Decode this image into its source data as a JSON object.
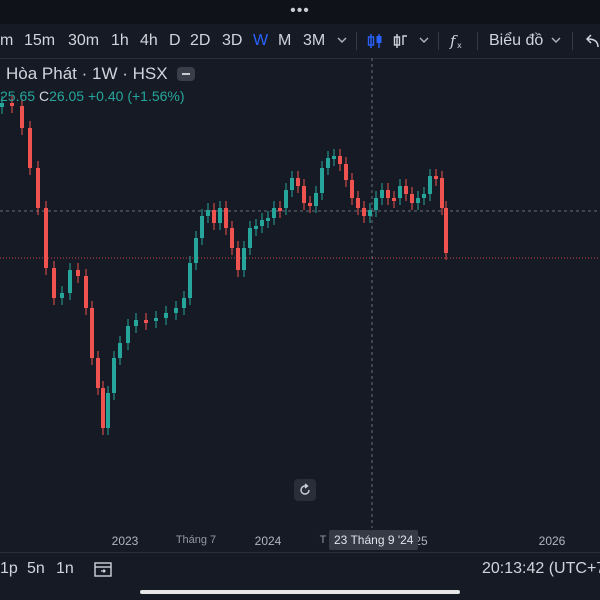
{
  "toolbar": {
    "intervals": [
      "m",
      "15m",
      "30m",
      "1h",
      "4h",
      "D",
      "2D",
      "3D",
      "W",
      "M",
      "3M"
    ],
    "active_interval": "W",
    "chart_type_label": "Biểu đồ"
  },
  "legend": {
    "title": "Hòa Phát · 1W · HSX",
    "open_value": "25.65",
    "close_key": "C",
    "close_value": "26.05",
    "change": "+0.40",
    "change_pct": "(+1.56%)"
  },
  "time_axis": {
    "labels": [
      "2023",
      "Tháng 7",
      "2024",
      "T",
      "25",
      "2026"
    ],
    "crosshair_label": "23 Tháng 9 '24"
  },
  "bottom": {
    "ranges": [
      "1p",
      "5n",
      "1n"
    ],
    "clock": "20:13:42 (UTC+7"
  },
  "colors": {
    "up": "#26a69a",
    "down": "#ef5350",
    "accent": "#2962ff",
    "background": "#161a25"
  },
  "icons": {
    "indicator": "candles-icon",
    "compare": "compare-icon",
    "formula": "fx-icon",
    "undo": "undo-icon",
    "reset": "reset-icon",
    "calendar": "calendar-goto-icon"
  }
}
